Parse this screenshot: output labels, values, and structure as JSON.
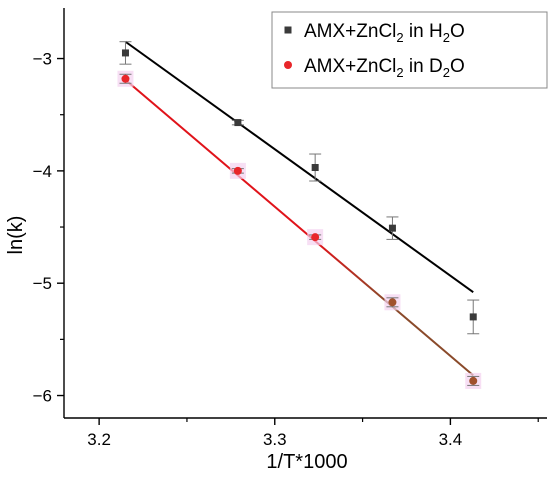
{
  "chart_data": {
    "type": "scatter",
    "title": "",
    "xlabel": "1/T*1000",
    "ylabel": "ln(k)",
    "xlim": [
      3.18,
      3.455
    ],
    "ylim": [
      -6.2,
      -2.55
    ],
    "x_ticks": [
      "3.2",
      "3.3",
      "3.4"
    ],
    "y_ticks": [
      "-3",
      "-4",
      "-5",
      "-6"
    ],
    "grid": false,
    "legend_position": "top-right",
    "series": [
      {
        "name_parts": [
          "AMX+ZnCl",
          "2",
          " in H",
          "2",
          "O"
        ],
        "marker": "square",
        "color": "#3a3a3a",
        "line_color": "#000000",
        "points": [
          {
            "x": 3.215,
            "y": -2.95,
            "err": 0.1
          },
          {
            "x": 3.279,
            "y": -3.57,
            "err": 0.02
          },
          {
            "x": 3.323,
            "y": -3.97,
            "err": 0.12
          },
          {
            "x": 3.367,
            "y": -4.51,
            "err": 0.1
          },
          {
            "x": 3.413,
            "y": -5.3,
            "err": 0.15
          }
        ],
        "fit": {
          "x": [
            3.215,
            3.413
          ],
          "y": [
            -2.85,
            -5.08
          ]
        }
      },
      {
        "name_parts": [
          "AMX+ZnCl",
          "2",
          " in D",
          "2",
          "O"
        ],
        "marker": "circle",
        "color": "#e8262a",
        "line_color": "#e0131a",
        "line_color_end": "#8a4a2a",
        "points": [
          {
            "x": 3.215,
            "y": -3.18,
            "err": 0.04
          },
          {
            "x": 3.279,
            "y": -4.0,
            "err": 0.02
          },
          {
            "x": 3.323,
            "y": -4.59,
            "err": 0.02
          },
          {
            "x": 3.367,
            "y": -5.17,
            "err": 0.04
          },
          {
            "x": 3.413,
            "y": -5.87,
            "err": 0.04
          }
        ],
        "fit": {
          "x": [
            3.215,
            3.413
          ],
          "y": [
            -3.19,
            -5.82
          ]
        }
      }
    ]
  }
}
